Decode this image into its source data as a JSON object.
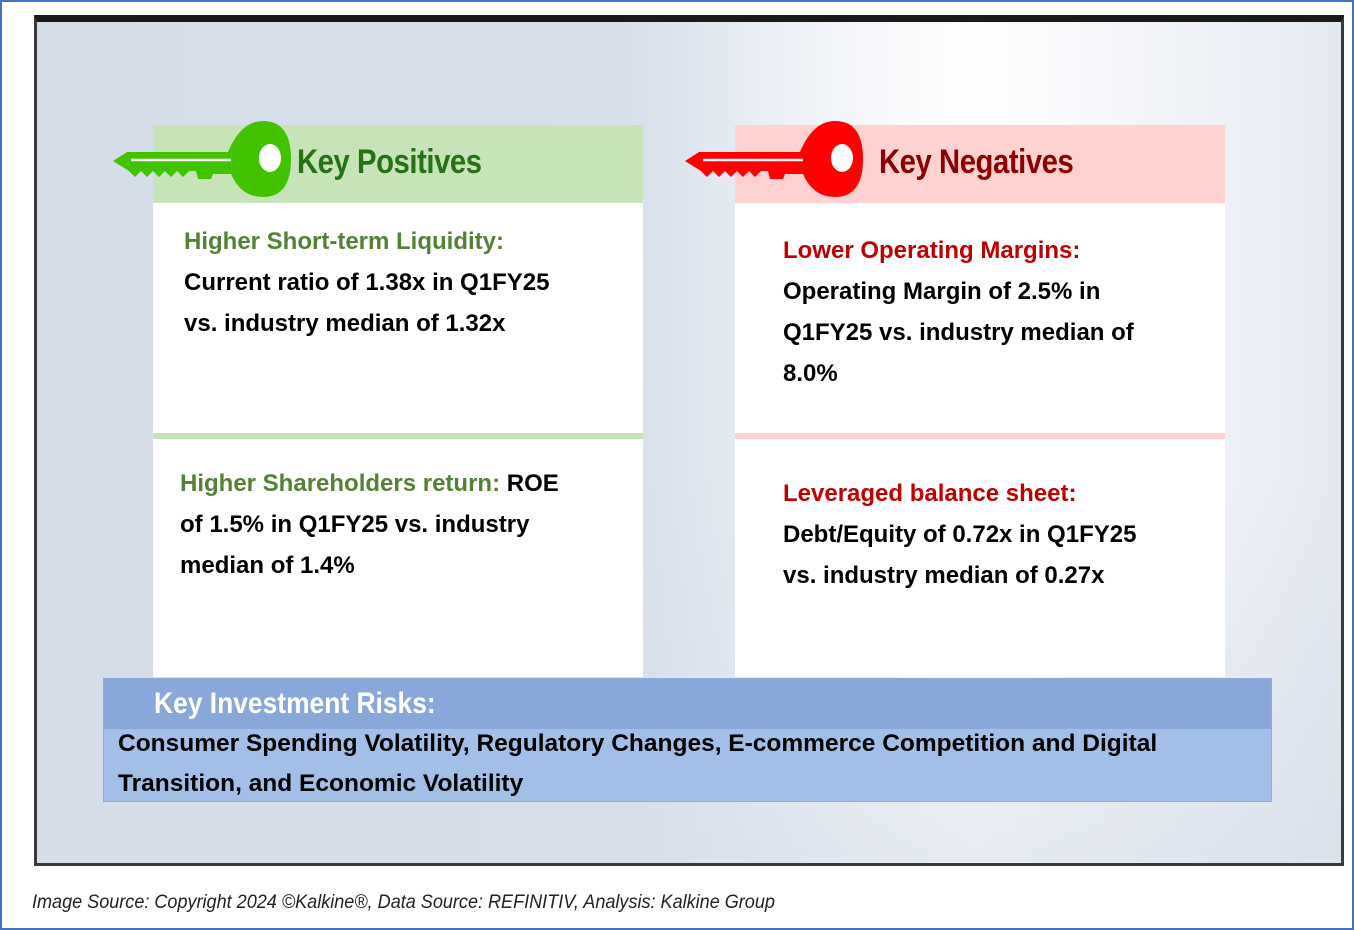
{
  "positives": {
    "title": "Key Positives",
    "accent": "#41c300",
    "items": [
      {
        "label": "Higher Short-term Liquidity:",
        "text_line1": "Current ratio of 1.38x in Q1FY25",
        "text_line2": "vs. industry median of 1.32x"
      },
      {
        "label": "Higher Shareholders return:",
        "text_tail": " ROE",
        "text_line2": "of 1.5% in Q1FY25 vs. industry",
        "text_line3": "median of 1.4%"
      }
    ],
    "icon": "key-icon"
  },
  "negatives": {
    "title": "Key Negatives",
    "accent": "#ff0000",
    "items": [
      {
        "label": "Lower Operating Margins:",
        "text_line1": "Operating Margin of 2.5% in",
        "text_line2": "Q1FY25 vs. industry median of",
        "text_line3": "8.0%"
      },
      {
        "label": "Leveraged balance sheet:",
        "text_line1": "Debt/Equity of 0.72x in Q1FY25",
        "text_line2": "vs. industry median of 0.27x"
      }
    ],
    "icon": "key-icon"
  },
  "risks": {
    "title": "Key Investment Risks:",
    "line1": "Consumer Spending Volatility, Regulatory Changes, E-commerce Competition and Digital",
    "line2": "Transition, and Economic Volatility"
  },
  "caption": "Image Source: Copyright 2024 ©Kalkine®, Data Source: REFINITIV, Analysis: Kalkine Group"
}
